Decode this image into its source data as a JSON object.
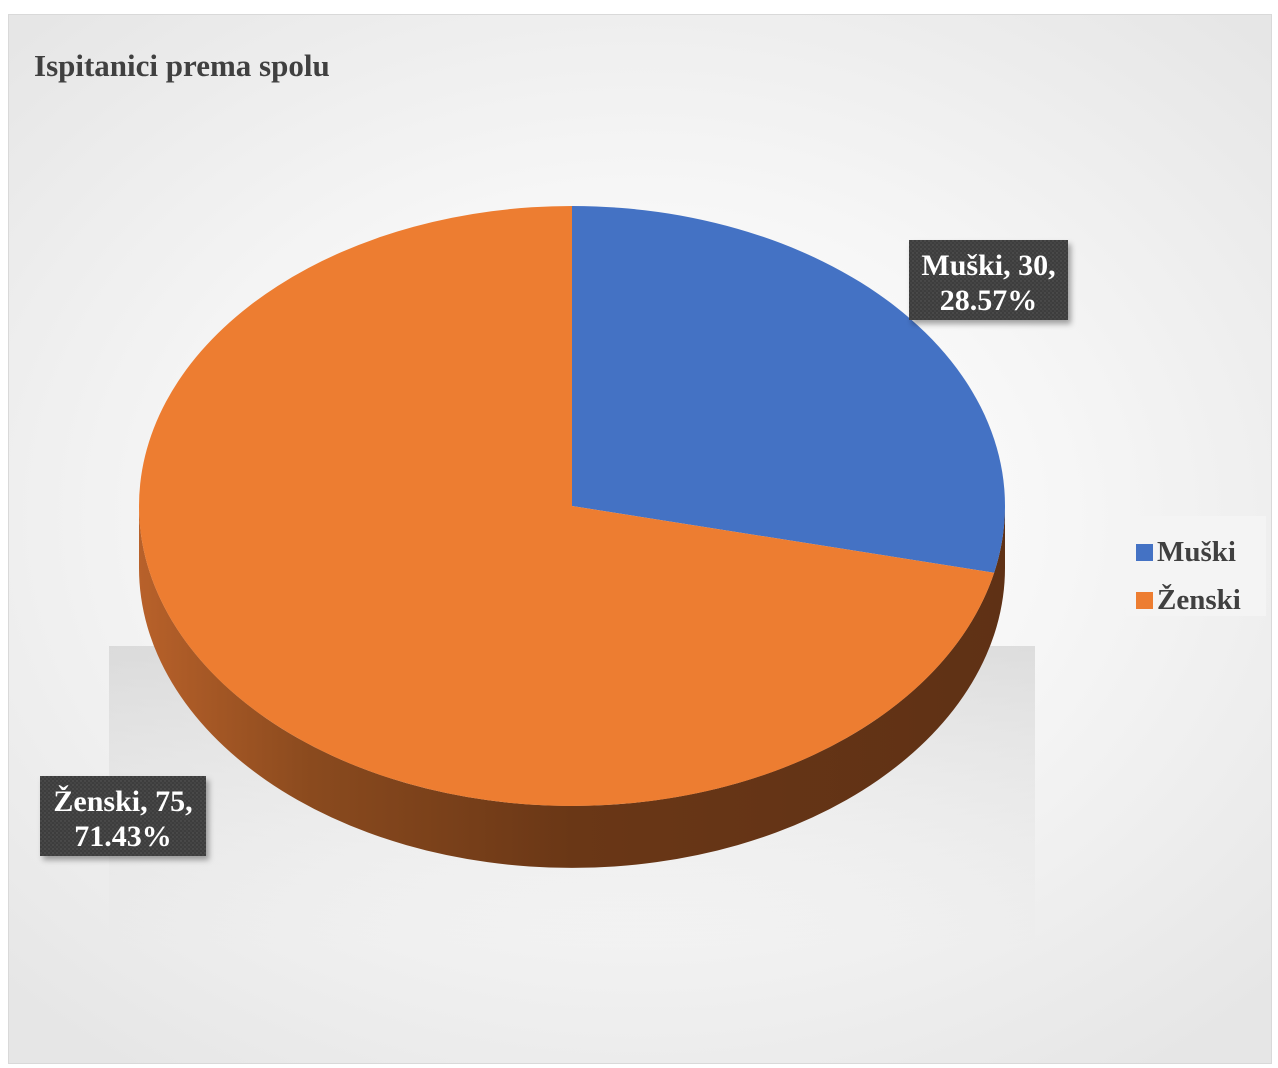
{
  "chart_data": {
    "type": "pie",
    "title": "Ispitanici prema spolu",
    "categories": [
      "Muški",
      "Ženski"
    ],
    "values": [
      30,
      75
    ],
    "percentages": [
      "28.57%",
      "71.43%"
    ],
    "data_labels": [
      {
        "line1": "Muški, 30,",
        "line2": "28.57%"
      },
      {
        "line1": "Ženski, 75,",
        "line2": "71.43%"
      }
    ],
    "colors": [
      "#4472C4",
      "#ED7D31"
    ],
    "legend": {
      "position": "right",
      "entries": [
        "Muški",
        "Ženski"
      ]
    },
    "style": "3d"
  }
}
